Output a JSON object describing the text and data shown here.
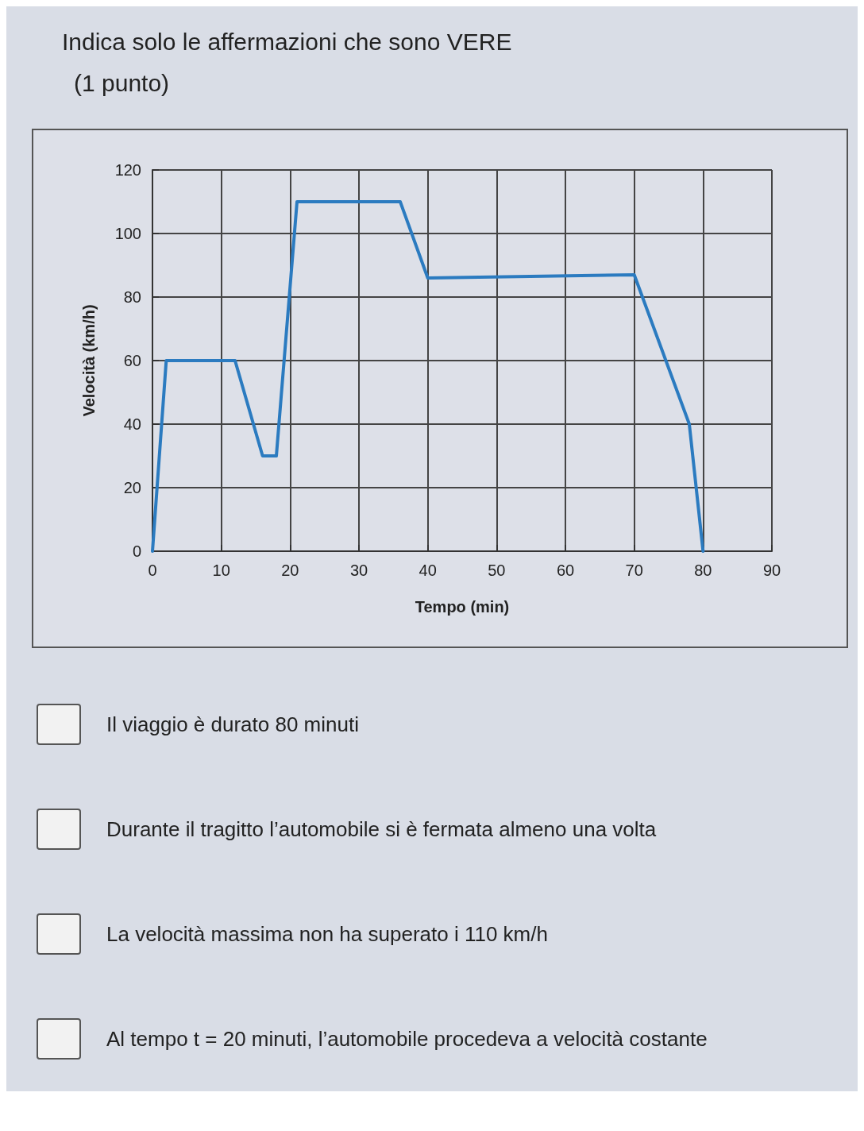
{
  "chart_data": {
    "type": "line",
    "title": "Indica solo le affermazioni che sono VERE",
    "subtitle": "(1 punto)",
    "xlabel": "Tempo (min)",
    "ylabel": "Velocità (km/h)",
    "x": [
      0,
      2,
      12,
      16,
      18,
      21,
      36,
      40,
      70,
      78,
      80
    ],
    "series": [
      {
        "color": "#2b7bc0",
        "values": [
          0,
          60,
          60,
          30,
          30,
          110,
          110,
          86,
          87,
          40,
          0
        ]
      }
    ],
    "xlim": [
      0,
      90
    ],
    "xticks": [
      0,
      10,
      20,
      30,
      40,
      50,
      60,
      70,
      80,
      90
    ],
    "ylim": [
      0,
      120
    ],
    "yticks": [
      0,
      20,
      40,
      60,
      80,
      100,
      120
    ],
    "grid": true,
    "marker": "none",
    "line_style": "solid",
    "annotations": [
      "Il viaggio è durato 80 minuti",
      "Durante il tragitto l’automobile si è fermata almeno una volta",
      "La velocità massima non ha superato i 110 km/h",
      "Al tempo t = 20 minuti, l’automobile procedeva a velocità costante"
    ]
  }
}
